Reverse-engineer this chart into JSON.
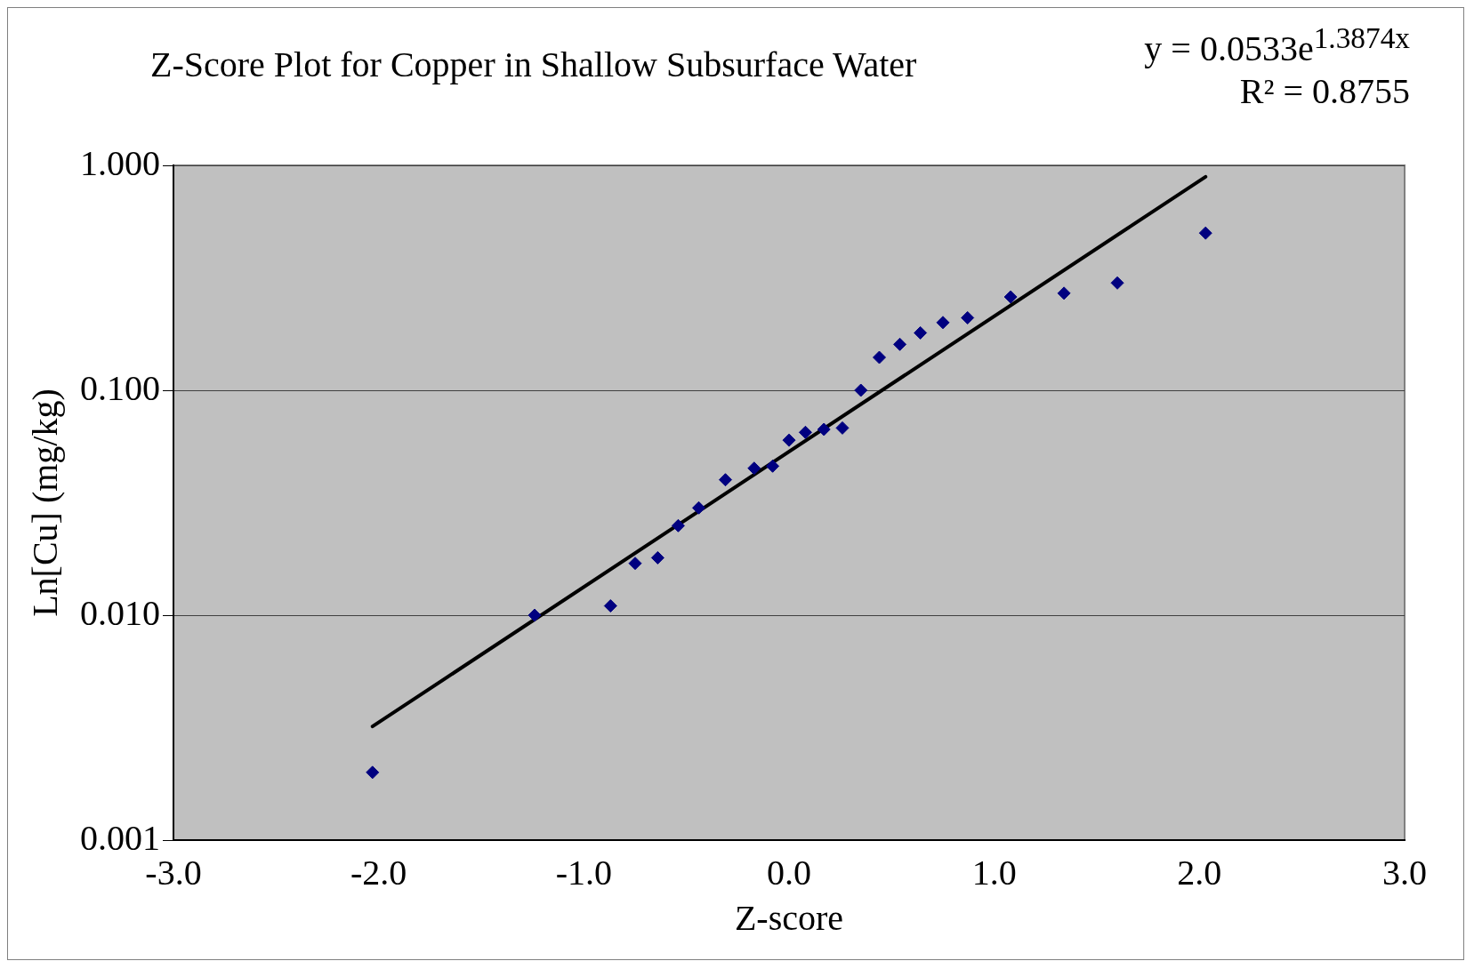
{
  "chart_data": {
    "type": "scatter",
    "title": "Z-Score Plot for Copper in Shallow Subsurface Water",
    "xlabel": "Z-score",
    "ylabel": "Ln[Cu] (mg/kg)",
    "annotations": [
      "y = 0.0533e$^{1.3874x}$",
      "R² = 0.8755"
    ],
    "log": "y",
    "grid": "y",
    "legend": false,
    "marker": "diamond",
    "xlim": [
      -3,
      3
    ],
    "xticks": [
      {
        "value": -3,
        "label": "-3.0"
      },
      {
        "value": -2,
        "label": "-2.0"
      },
      {
        "value": -1,
        "label": "-1.0"
      },
      {
        "value": 0,
        "label": "0.0"
      },
      {
        "value": 1,
        "label": "1.0"
      },
      {
        "value": 2,
        "label": "2.0"
      },
      {
        "value": 3,
        "label": "3.0"
      }
    ],
    "ylim": [
      0.001,
      1
    ],
    "yticks": [
      {
        "value": 0.001,
        "label": "0.001"
      },
      {
        "value": 0.01,
        "label": "0.010"
      },
      {
        "value": 0.1,
        "label": "0.100"
      },
      {
        "value": 1,
        "label": "1.000"
      }
    ],
    "series": [
      {
        "type": "scatter",
        "color": "#000080",
        "x": [
          -2.03,
          -1.24,
          -0.87,
          -0.75,
          -0.64,
          -0.54,
          -0.44,
          -0.31,
          -0.17,
          -0.08,
          0.0,
          0.08,
          0.17,
          0.26,
          0.35,
          0.44,
          0.54,
          0.64,
          0.75,
          0.87,
          1.08,
          1.34,
          1.6,
          2.03
        ],
        "values": [
          0.002,
          0.01,
          0.011,
          0.017,
          0.018,
          0.025,
          0.03,
          0.04,
          0.045,
          0.046,
          0.06,
          0.065,
          0.067,
          0.068,
          0.1,
          0.14,
          0.16,
          0.18,
          0.2,
          0.21,
          0.26,
          0.27,
          0.3,
          0.5
        ]
      },
      {
        "type": "line",
        "color": "#000000",
        "marker": "none",
        "x": [
          -2.03,
          2.03
        ],
        "values": [
          0.0032,
          0.89
        ]
      }
    ]
  }
}
